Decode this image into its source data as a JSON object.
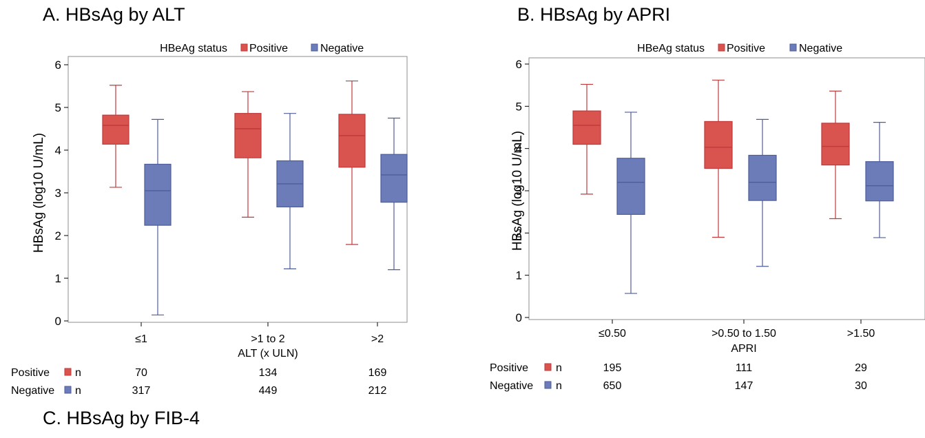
{
  "panel_c_heading": "C.  HBsAg by FIB-4",
  "colors": {
    "positive_fill": "#d9534f",
    "positive_line": "#c0393b",
    "negative_fill": "#6b7cb8",
    "negative_line": "#4e5d9a",
    "frame": "#8c8c8c"
  },
  "chart_data": [
    {
      "type": "box",
      "title": "A.  HBsAg by ALT",
      "legend_title": "HBeAg status",
      "legend_placement": "top",
      "xlabel": "ALT (x ULN)",
      "ylabel": "HBsAg (log10 U/mL)",
      "ylim": [
        0,
        6
      ],
      "yticks": [
        "0",
        "1",
        "2",
        "3",
        "4",
        "5",
        "6"
      ],
      "grid": false,
      "categories": [
        "≤1",
        ">1 to 2",
        ">2"
      ],
      "series": [
        {
          "name": "Positive",
          "color": "#d9534f",
          "boxes": [
            {
              "min": 3.13,
              "q1": 4.14,
              "median": 4.58,
              "q3": 4.82,
              "max": 5.52
            },
            {
              "min": 2.43,
              "q1": 3.82,
              "median": 4.5,
              "q3": 4.86,
              "max": 5.37
            },
            {
              "min": 1.79,
              "q1": 3.6,
              "median": 4.34,
              "q3": 4.84,
              "max": 5.62
            }
          ]
        },
        {
          "name": "Negative",
          "color": "#6b7cb8",
          "boxes": [
            {
              "min": 0.14,
              "q1": 2.24,
              "median": 3.05,
              "q3": 3.67,
              "max": 4.72
            },
            {
              "min": 1.22,
              "q1": 2.67,
              "median": 3.21,
              "q3": 3.75,
              "max": 4.86
            },
            {
              "min": 1.2,
              "q1": 2.78,
              "median": 3.42,
              "q3": 3.9,
              "max": 4.75
            }
          ]
        }
      ],
      "counts": {
        "label": "n",
        "rows": [
          {
            "name": "Positive",
            "values": [
              "70",
              "134",
              "169"
            ]
          },
          {
            "name": "Negative",
            "values": [
              "317",
              "449",
              "212"
            ]
          }
        ]
      }
    },
    {
      "type": "box",
      "title": "B.  HBsAg by APRI",
      "legend_title": "HBeAg status",
      "legend_placement": "top",
      "xlabel": "APRI",
      "ylabel": "HBsAg (log10 U/mL)",
      "ylim": [
        0,
        6
      ],
      "yticks": [
        "0",
        "1",
        "2",
        "3",
        "4",
        "5",
        "6"
      ],
      "grid": false,
      "categories": [
        "≤0.50",
        ">0.50 to 1.50",
        ">1.50"
      ],
      "series": [
        {
          "name": "Positive",
          "color": "#d9534f",
          "boxes": [
            {
              "min": 2.92,
              "q1": 4.1,
              "median": 4.55,
              "q3": 4.89,
              "max": 5.52
            },
            {
              "min": 1.9,
              "q1": 3.53,
              "median": 4.03,
              "q3": 4.64,
              "max": 5.62
            },
            {
              "min": 2.34,
              "q1": 3.61,
              "median": 4.05,
              "q3": 4.6,
              "max": 5.36
            }
          ]
        },
        {
          "name": "Negative",
          "color": "#6b7cb8",
          "boxes": [
            {
              "min": 0.57,
              "q1": 2.44,
              "median": 3.2,
              "q3": 3.77,
              "max": 4.86
            },
            {
              "min": 1.21,
              "q1": 2.77,
              "median": 3.2,
              "q3": 3.84,
              "max": 4.69
            },
            {
              "min": 1.89,
              "q1": 2.76,
              "median": 3.12,
              "q3": 3.69,
              "max": 4.62
            }
          ]
        }
      ],
      "counts": {
        "label": "n",
        "rows": [
          {
            "name": "Positive",
            "values": [
              "195",
              "111",
              "29"
            ]
          },
          {
            "name": "Negative",
            "values": [
              "650",
              "147",
              "30"
            ]
          }
        ]
      }
    }
  ]
}
